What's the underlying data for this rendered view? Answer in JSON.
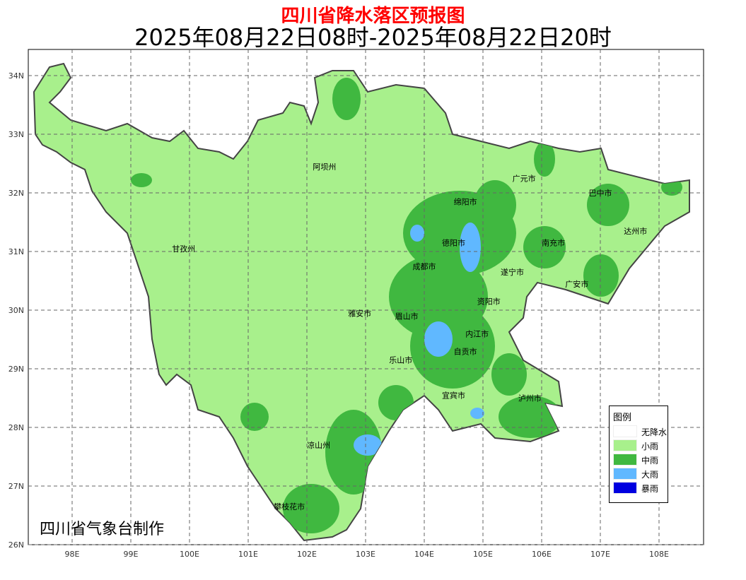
{
  "title": "四川省降水落区预报图",
  "subtitle": "2025年08月22日08时-2025年08月22日20时",
  "credit": "四川省气象台制作",
  "axes": {
    "x_ticks": [
      "98E",
      "99E",
      "100E",
      "101E",
      "102E",
      "103E",
      "104E",
      "105E",
      "106E",
      "107E",
      "108E"
    ],
    "y_ticks": [
      "34N",
      "33N",
      "32N",
      "31N",
      "30N",
      "29N",
      "28N",
      "27N",
      "26N"
    ]
  },
  "cities": [
    {
      "name": "阿坝州",
      "lon": 102.3,
      "lat": 32.4
    },
    {
      "name": "甘孜州",
      "lon": 99.9,
      "lat": 31.0
    },
    {
      "name": "绵阳市",
      "lon": 104.7,
      "lat": 31.8
    },
    {
      "name": "广元市",
      "lon": 105.7,
      "lat": 32.2
    },
    {
      "name": "巴中市",
      "lon": 107.0,
      "lat": 31.95
    },
    {
      "name": "达州市",
      "lon": 107.6,
      "lat": 31.3
    },
    {
      "name": "德阳市",
      "lon": 104.5,
      "lat": 31.1
    },
    {
      "name": "南充市",
      "lon": 106.2,
      "lat": 31.1
    },
    {
      "name": "成都市",
      "lon": 104.0,
      "lat": 30.7
    },
    {
      "name": "遂宁市",
      "lon": 105.5,
      "lat": 30.6
    },
    {
      "name": "广安市",
      "lon": 106.6,
      "lat": 30.4
    },
    {
      "name": "资阳市",
      "lon": 105.1,
      "lat": 30.1
    },
    {
      "name": "雅安市",
      "lon": 102.9,
      "lat": 29.9
    },
    {
      "name": "眉山市",
      "lon": 103.7,
      "lat": 29.85
    },
    {
      "name": "内江市",
      "lon": 104.9,
      "lat": 29.55
    },
    {
      "name": "自贡市",
      "lon": 104.7,
      "lat": 29.25
    },
    {
      "name": "乐山市",
      "lon": 103.6,
      "lat": 29.1
    },
    {
      "name": "宜宾市",
      "lon": 104.5,
      "lat": 28.5
    },
    {
      "name": "泸州市",
      "lon": 105.8,
      "lat": 28.45
    },
    {
      "name": "凉山州",
      "lon": 102.2,
      "lat": 27.65
    },
    {
      "name": "攀枝花市",
      "lon": 101.7,
      "lat": 26.6
    }
  ],
  "legend": {
    "title": "图例",
    "items": [
      {
        "label": "无降水",
        "color": "#ffffff"
      },
      {
        "label": "小雨",
        "color": "#a8f08c"
      },
      {
        "label": "中雨",
        "color": "#40b840"
      },
      {
        "label": "大雨",
        "color": "#60b8ff"
      },
      {
        "label": "暴雨",
        "color": "#0000e0"
      }
    ]
  }
}
